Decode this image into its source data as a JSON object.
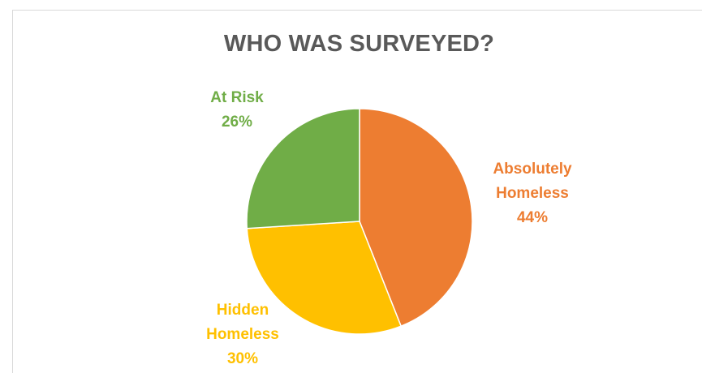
{
  "chart_data": {
    "type": "pie",
    "title": "WHO WAS SURVEYED?",
    "slices": [
      {
        "name": "Absolutely Homeless",
        "label_lines": [
          "Absolutely",
          "Homeless"
        ],
        "percent_label": "44%",
        "value": 44,
        "color": "#ED7D31"
      },
      {
        "name": "Hidden Homeless",
        "label_lines": [
          "Hidden",
          "Homeless"
        ],
        "percent_label": "30%",
        "value": 30,
        "color": "#FFC000"
      },
      {
        "name": "At Risk",
        "label_lines": [
          "At Risk"
        ],
        "percent_label": "26%",
        "value": 26,
        "color": "#70AD47"
      }
    ]
  }
}
